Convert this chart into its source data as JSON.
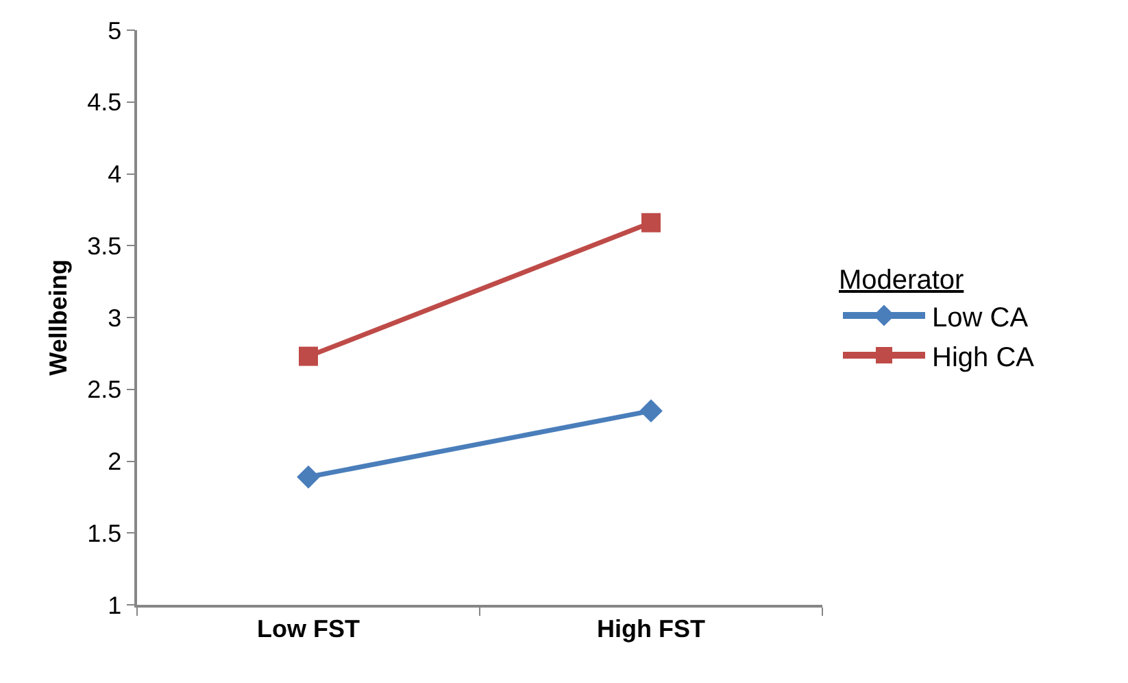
{
  "chart_data": {
    "type": "line",
    "ylabel": "Wellbeing",
    "legend_title": "Moderator",
    "categories": [
      "Low FST",
      "High FST"
    ],
    "series": [
      {
        "name": "Low CA",
        "color": "#4a7ebb",
        "values": [
          1.89,
          2.35
        ],
        "marker": "diamond"
      },
      {
        "name": "High CA",
        "color": "#be4b48",
        "values": [
          2.73,
          3.66
        ],
        "marker": "square"
      }
    ],
    "ylim": [
      1,
      5
    ],
    "yticks": [
      1,
      1.5,
      2,
      2.5,
      3,
      3.5,
      4,
      4.5,
      5
    ],
    "legend": "right",
    "line_style": "solid"
  }
}
